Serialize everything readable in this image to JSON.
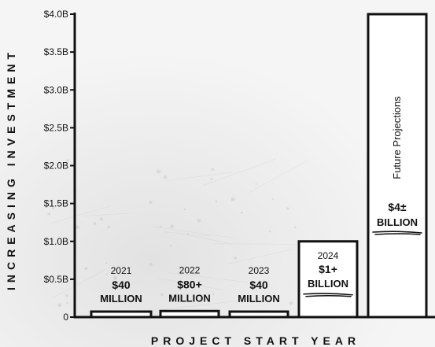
{
  "chart_data": {
    "type": "bar",
    "title": "",
    "xlabel": "PROJECT START YEAR",
    "ylabel": "INCREASING INVESTMENT",
    "ylim": [
      0,
      4.0
    ],
    "y_ticks": [
      {
        "value": 0,
        "label": "0"
      },
      {
        "value": 0.5,
        "label": "$0.5B"
      },
      {
        "value": 1.0,
        "label": "$1.0B"
      },
      {
        "value": 1.5,
        "label": "$1.5B"
      },
      {
        "value": 2.0,
        "label": "$2.0B"
      },
      {
        "value": 2.5,
        "label": "$2.5B"
      },
      {
        "value": 3.0,
        "label": "$3.0B"
      },
      {
        "value": 3.5,
        "label": "$3.5B"
      },
      {
        "value": 4.0,
        "label": "$4.0B"
      }
    ],
    "grid": false,
    "bars": [
      {
        "year": "2021",
        "value": 0.04,
        "amount": "$40",
        "unit": "MILLION",
        "note": ""
      },
      {
        "year": "2022",
        "value": 0.08,
        "amount": "$80+",
        "unit": "MILLION",
        "note": ""
      },
      {
        "year": "2023",
        "value": 0.04,
        "amount": "$40",
        "unit": "MILLION",
        "note": ""
      },
      {
        "year": "2024",
        "value": 1.0,
        "amount": "$1+",
        "unit": "BILLION",
        "note": ""
      },
      {
        "year": "",
        "value": 4.0,
        "amount": "$4±",
        "unit": "BILLION",
        "note": "Future Projections"
      }
    ],
    "colors": {
      "bar_fill": "#ffffff",
      "bar_stroke": "#111111",
      "text": "#111111",
      "axis": "#111111"
    }
  }
}
